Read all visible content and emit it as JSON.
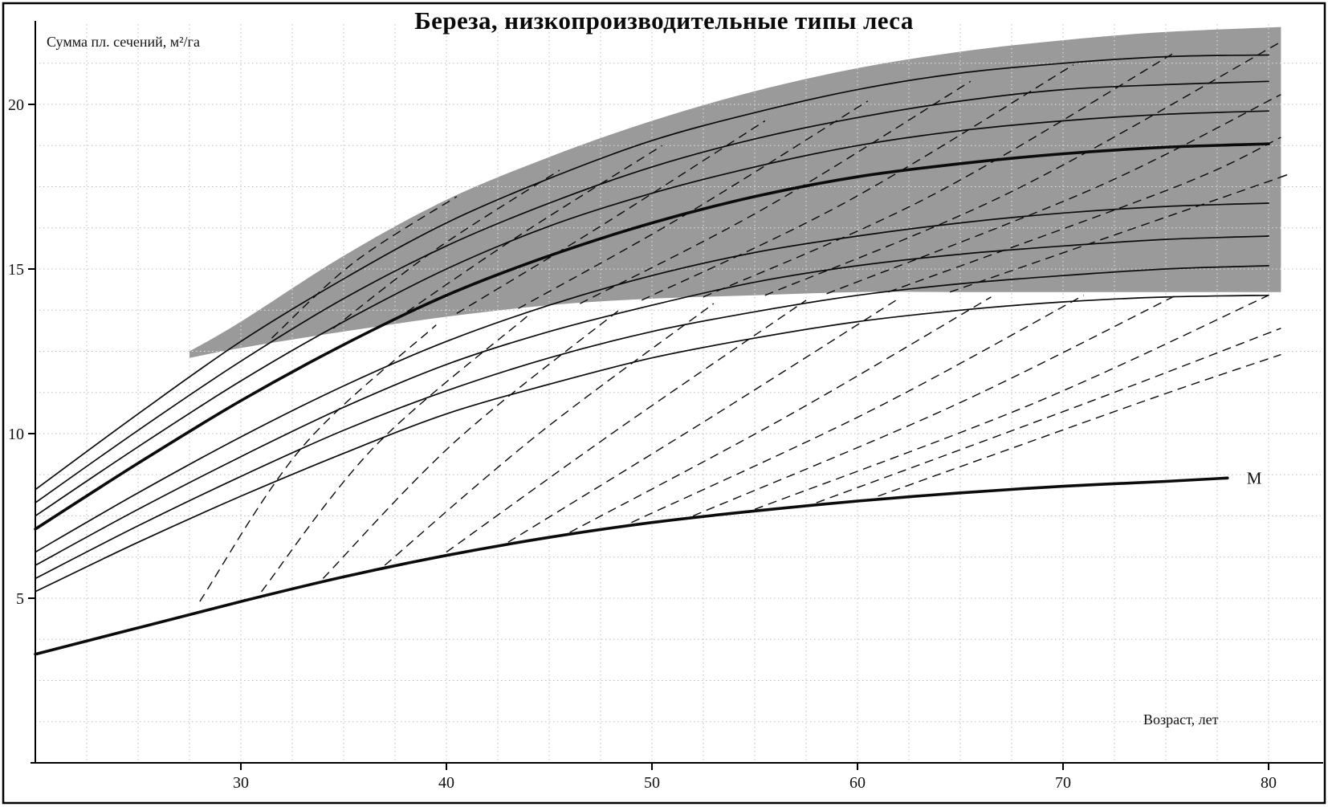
{
  "chart_data": {
    "type": "line",
    "title": "Береза, низкопроизводительные типы леса",
    "ylabel": "Сумма пл. сечений, м²/га",
    "xlabel": "Возраст, лет",
    "m_label": "M",
    "xlim": [
      20,
      82.5
    ],
    "ylim": [
      0,
      22.5
    ],
    "x_ticks": [
      30,
      40,
      50,
      60,
      70,
      80
    ],
    "y_ticks": [
      5,
      10,
      15,
      20
    ],
    "grid": {
      "x_start": 22.5,
      "x_end": 80,
      "x_step": 2.5,
      "y_start": 1.25,
      "y_end": 21.25,
      "y_step": 1.25
    },
    "legend": "none",
    "colors": {
      "band": "#9a9a9a",
      "line": "#0b0b0b",
      "grid": "#bdbdbd",
      "band_grid": "#ffffff",
      "frame": "#000000",
      "background": "#ffffff"
    },
    "ages": [
      20,
      25,
      30,
      35,
      40,
      45,
      50,
      55,
      60,
      65,
      70,
      75,
      80
    ],
    "series": [
      {
        "name": "curve-1",
        "bold": false,
        "values": [
          5.2,
          6.7,
          8.1,
          9.4,
          10.6,
          11.5,
          12.3,
          12.9,
          13.4,
          13.75,
          14.0,
          14.15,
          14.2
        ]
      },
      {
        "name": "curve-2",
        "bold": false,
        "values": [
          5.6,
          7.2,
          8.7,
          10.1,
          11.3,
          12.3,
          13.1,
          13.7,
          14.2,
          14.55,
          14.8,
          15.0,
          15.1
        ]
      },
      {
        "name": "curve-3",
        "bold": false,
        "values": [
          6.0,
          7.7,
          9.3,
          10.8,
          12.1,
          13.1,
          13.9,
          14.6,
          15.1,
          15.45,
          15.7,
          15.9,
          16.0
        ]
      },
      {
        "name": "curve-4",
        "bold": false,
        "values": [
          6.4,
          8.2,
          9.9,
          11.45,
          12.8,
          13.9,
          14.8,
          15.5,
          16.0,
          16.4,
          16.7,
          16.9,
          17.0
        ]
      },
      {
        "name": "curve-5-bold",
        "bold": true,
        "values": [
          7.1,
          9.1,
          11.0,
          12.7,
          14.2,
          15.4,
          16.4,
          17.2,
          17.8,
          18.2,
          18.5,
          18.7,
          18.8
        ]
      },
      {
        "name": "curve-6",
        "bold": false,
        "values": [
          7.5,
          9.6,
          11.6,
          13.4,
          15.0,
          16.3,
          17.3,
          18.1,
          18.75,
          19.2,
          19.5,
          19.7,
          19.8
        ]
      },
      {
        "name": "curve-7",
        "bold": false,
        "values": [
          7.9,
          10.1,
          12.2,
          14.1,
          15.7,
          17.0,
          18.1,
          18.95,
          19.6,
          20.1,
          20.45,
          20.6,
          20.7
        ]
      },
      {
        "name": "curve-8",
        "bold": false,
        "values": [
          8.3,
          10.6,
          12.8,
          14.7,
          16.4,
          17.75,
          18.9,
          19.75,
          20.45,
          20.95,
          21.25,
          21.45,
          21.5
        ]
      }
    ],
    "m_curve": {
      "name": "M",
      "bold": true,
      "x": [
        20,
        25,
        30,
        35,
        40,
        45,
        50,
        55,
        60,
        65,
        70,
        75,
        78
      ],
      "values": [
        3.3,
        4.1,
        4.9,
        5.65,
        6.3,
        6.85,
        7.3,
        7.65,
        7.95,
        8.2,
        8.4,
        8.55,
        8.65
      ]
    },
    "band": {
      "x": [
        27.5,
        30,
        35,
        40,
        45,
        50,
        55,
        60,
        65,
        70,
        75,
        80.6
      ],
      "bottom": [
        12.3,
        12.6,
        13.1,
        13.55,
        13.9,
        14.1,
        14.2,
        14.3,
        14.3,
        14.3,
        14.3,
        14.3
      ],
      "top": [
        12.5,
        13.4,
        15.4,
        17.1,
        18.4,
        19.5,
        20.4,
        21.1,
        21.6,
        21.95,
        22.2,
        22.35
      ]
    },
    "dashed_lower": [
      [
        [
          28,
          4.9
        ],
        [
          33,
          9.6
        ],
        [
          39.5,
          13.3
        ]
      ],
      [
        [
          31,
          5.2
        ],
        [
          36.5,
          9.6
        ],
        [
          44,
          13.6
        ]
      ],
      [
        [
          34,
          5.6
        ],
        [
          40.5,
          9.8
        ],
        [
          48.5,
          13.8
        ]
      ],
      [
        [
          37,
          6.0
        ],
        [
          44.5,
          10.0
        ],
        [
          53,
          13.95
        ]
      ],
      [
        [
          40,
          6.4
        ],
        [
          48.5,
          10.2
        ],
        [
          57.5,
          14.05
        ]
      ],
      [
        [
          43,
          6.7
        ],
        [
          52.5,
          10.35
        ],
        [
          62,
          14.1
        ]
      ],
      [
        [
          46,
          7.0
        ],
        [
          56.5,
          10.5
        ],
        [
          66.5,
          14.15
        ]
      ],
      [
        [
          49,
          7.3
        ],
        [
          60.5,
          10.65
        ],
        [
          71,
          14.2
        ]
      ],
      [
        [
          52,
          7.5
        ],
        [
          64.5,
          10.8
        ],
        [
          75.5,
          14.2
        ]
      ],
      [
        [
          55,
          7.7
        ],
        [
          68.5,
          10.9
        ],
        [
          80,
          14.2
        ]
      ],
      [
        [
          58,
          7.9
        ],
        [
          71,
          10.9
        ],
        [
          80.6,
          13.2
        ]
      ],
      [
        [
          61,
          8.1
        ],
        [
          74,
          11.0
        ],
        [
          80.6,
          12.4
        ]
      ]
    ],
    "dashed_upper": [
      [
        [
          31.5,
          12.9
        ],
        [
          35.5,
          15.2
        ],
        [
          40.5,
          17.2
        ]
      ],
      [
        [
          34.5,
          13.2
        ],
        [
          39.5,
          15.6
        ],
        [
          45.5,
          18.0
        ]
      ],
      [
        [
          37.5,
          13.45
        ],
        [
          43.5,
          16.0
        ],
        [
          50.5,
          18.75
        ]
      ],
      [
        [
          40.5,
          13.65
        ],
        [
          47.5,
          16.3
        ],
        [
          55.5,
          19.5
        ]
      ],
      [
        [
          43.5,
          13.8
        ],
        [
          51.5,
          16.6
        ],
        [
          60.5,
          20.1
        ]
      ],
      [
        [
          46.5,
          13.95
        ],
        [
          55.5,
          16.85
        ],
        [
          65.5,
          20.7
        ]
      ],
      [
        [
          49.5,
          14.05
        ],
        [
          59.5,
          17.05
        ],
        [
          70.5,
          21.2
        ]
      ],
      [
        [
          52.5,
          14.15
        ],
        [
          63.5,
          17.2
        ],
        [
          75.5,
          21.6
        ]
      ],
      [
        [
          55.5,
          14.2
        ],
        [
          67.5,
          17.35
        ],
        [
          80.6,
          21.9
        ]
      ],
      [
        [
          58.5,
          14.25
        ],
        [
          71.5,
          17.45
        ],
        [
          80.6,
          20.3
        ]
      ],
      [
        [
          61.5,
          14.3
        ],
        [
          75.5,
          17.5
        ],
        [
          80.6,
          19.0
        ]
      ],
      [
        [
          64.5,
          14.3
        ],
        [
          79.5,
          17.55
        ],
        [
          80.6,
          17.8
        ]
      ]
    ]
  }
}
